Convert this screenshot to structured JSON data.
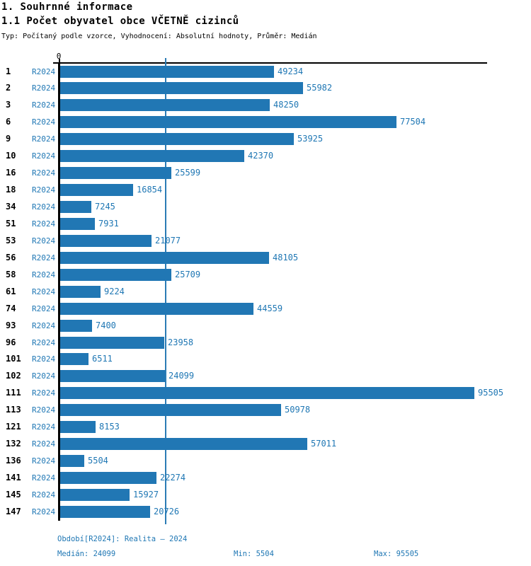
{
  "header": {
    "title": "1. Souhrnné informace",
    "subtitle": "1.1 Počet obyvatel obce VČETNĚ cizinců",
    "meta": "Typ: Počítaný podle vzorce, Vyhodnocení: Absolutní hodnoty, Průměr: Medián"
  },
  "chart_data": {
    "type": "bar",
    "orientation": "horizontal",
    "title": "1.1 Počet obyvatel obce VČETNĚ cizinců",
    "categories": [
      "1",
      "2",
      "3",
      "6",
      "9",
      "10",
      "16",
      "18",
      "34",
      "51",
      "53",
      "56",
      "58",
      "61",
      "74",
      "93",
      "96",
      "101",
      "102",
      "111",
      "113",
      "121",
      "132",
      "136",
      "141",
      "145",
      "147"
    ],
    "series": [
      {
        "name": "R2024",
        "values": [
          49234,
          55982,
          48250,
          77504,
          53925,
          42370,
          25599,
          16854,
          7245,
          7931,
          21077,
          48105,
          25709,
          9224,
          44559,
          7400,
          23958,
          6511,
          24099,
          95505,
          50978,
          8153,
          57011,
          5504,
          22274,
          15927,
          20726
        ]
      }
    ],
    "xlabel": "",
    "ylabel": "",
    "xlim": [
      0,
      95505
    ],
    "axis": {
      "zero_label": "0"
    },
    "median_reference_line": 24099,
    "value_labels_shown": true,
    "legend_position": "none",
    "grid": false,
    "colors": {
      "bar": "#2177b4",
      "value_text": "#1f77b4",
      "median_line": "#2b7cb5",
      "axis": "#000000"
    },
    "stats": {
      "median": 24099,
      "min": 5504,
      "max": 95505
    }
  },
  "footer": {
    "period": "Období[R2024]: Realita – 2024",
    "median": "Medián: 24099",
    "min": "Min: 5504",
    "max": "Max: 95505"
  }
}
